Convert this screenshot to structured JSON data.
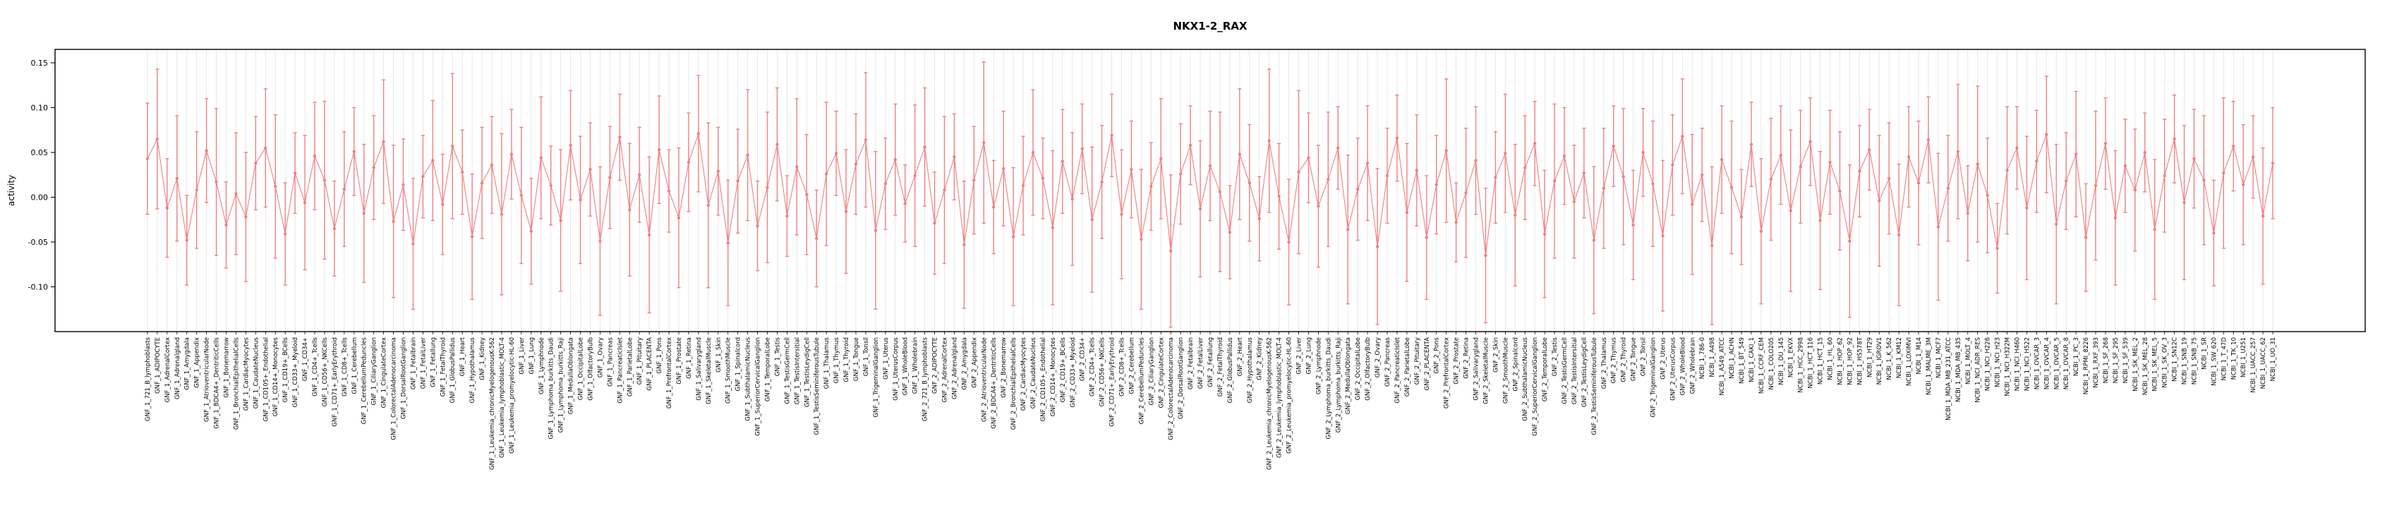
{
  "page": {
    "background": "#ffffff"
  },
  "chart_data": {
    "type": "line",
    "title": "NKX1-2_RAX",
    "xlabel": "",
    "ylabel": "activity",
    "ylim": [
      -0.15,
      0.165
    ],
    "yticks": [
      -0.1,
      -0.05,
      0.0,
      0.05,
      0.1,
      0.15
    ],
    "ytick_labels": [
      "-0.10",
      "-0.05",
      "0.00",
      "0.05",
      "0.10",
      "0.15"
    ],
    "grid": true,
    "legend": "none",
    "error_bars": true,
    "series_color": "#f08080",
    "grid_color": "#e3e3e3",
    "frame_color": "#000000",
    "category_prefix_groups": [
      {
        "prefix": "GNF_1_",
        "set": "gnf_tissues"
      },
      {
        "prefix": "GNF_2_",
        "set": "gnf_tissues"
      },
      {
        "prefix": "NCBI_1_",
        "set": "ncbi_cell_lines"
      }
    ],
    "gnf_tissues": [
      "721_B_lymphoblasts",
      "ADIPOCYTE",
      "AdrenalCortex",
      "Adrenalgland",
      "Amygdala",
      "Appendix",
      "AtrioventricularNode",
      "BDCA4+_DentriticCells",
      "Bonemarrow",
      "BronchialEpithelialCells",
      "CardiacMyocytes",
      "CaudateNucleus",
      "CD105+_Endothelial",
      "CD14+_Monocytes",
      "CD19+_BCells",
      "CD33+_Myeloid",
      "CD34+",
      "CD4+_Tcells",
      "CD56+_NKCells",
      "CD71+_EarlyErythroid",
      "CD8+_Tcells",
      "Cerebellum",
      "CerebellumPeduncles",
      "CiliaryGanglion",
      "CingulateCortex",
      "ColorectalAdenocarcinoma",
      "DorsalRootGanglion",
      "Fetalbrain",
      "FetalLiver",
      "Fetallung",
      "FetalThyroid",
      "GlobusPallidus",
      "Heart",
      "Hypothalamus",
      "Kidney",
      "Leukemia_chronicMyelogenousK-562",
      "Leukemia_lymphoblastic_MOLT-4",
      "Leukemia_promyelocytic-HL-60",
      "Liver",
      "Lung",
      "Lymphnode",
      "Lymphoma_burkitts_Daudi",
      "Lymphoma_burkitts_Raji",
      "MedullaOblongata",
      "OccipitalLobe",
      "OlfactoryBulb",
      "Ovary",
      "Pancreas",
      "PancreaticIslet",
      "ParietalLobe",
      "Pituitary",
      "PLACENTA",
      "Pons",
      "PrefrontalCortex",
      "Prostate",
      "Retina",
      "Salivarygland",
      "SkeletalMuscle",
      "Skin",
      "SmoothMuscle",
      "Spinalcord",
      "SubthalamicNucleus",
      "SuperiorCervicalGanglion",
      "TemporalLobe",
      "Testis",
      "TestisGermCell",
      "TestisIntersitial",
      "TestisLeydigCell",
      "TestisSeminiferousTubule",
      "Thalamus",
      "Thymus",
      "Thyroid",
      "Tongue",
      "Tonsil",
      "TrigeminalGanglion",
      "Uterus",
      "UterusCorpus",
      "WholeBlood",
      "Wholebrain"
    ],
    "ncbi_cell_lines": [
      "786-0",
      "A498",
      "A549_ATCC",
      "ACHN",
      "BT_549",
      "CAKI_1",
      "CCRF_CEM",
      "COLO205",
      "DU_145",
      "EKVX",
      "HCC_2998",
      "HCT_116",
      "HCT_15",
      "HL_60",
      "HOP_62",
      "HOP_92",
      "HS578T",
      "HT29",
      "IGROV1",
      "K_562",
      "KM12",
      "LOXIMVI",
      "M14",
      "MALME_3M",
      "MCF7",
      "MDA_MB_231_ATCC",
      "MDA_MB_435",
      "MOLT_4",
      "NCI_ADR_RES",
      "NCI_H226",
      "NCI_H23",
      "NCI_H322M",
      "NCI_H460",
      "NCI_H522",
      "OVCAR_3",
      "OVCAR_4",
      "OVCAR_5",
      "OVCAR_8",
      "PC_3",
      "RPMI_8226",
      "RXF_393",
      "SF_268",
      "SF_295",
      "SF_539",
      "SK_MEL_2",
      "SK_MEL_28",
      "SK_MEL_5",
      "SK_OV_3",
      "SN12C",
      "SNB_19",
      "SNB_75",
      "SR",
      "SW_620",
      "T_47D",
      "TK_10",
      "U251",
      "UACC_257",
      "UACC_62",
      "UO_31"
    ],
    "values": [
      0.043,
      0.065,
      -0.012,
      0.021,
      -0.048,
      0.008,
      0.052,
      0.017,
      -0.031,
      0.004,
      -0.022,
      0.038,
      0.055,
      0.012,
      -0.041,
      0.027,
      -0.006,
      0.046,
      0.019,
      -0.035,
      0.009,
      0.051,
      -0.018,
      0.033,
      0.062,
      -0.027,
      0.014,
      -0.052,
      0.023,
      0.041,
      -0.008,
      0.057,
      0.028,
      -0.044,
      0.016,
      0.036,
      -0.019,
      0.048,
      0.002,
      -0.038,
      0.044,
      0.013,
      -0.026,
      0.058,
      -0.003,
      0.031,
      -0.049,
      0.022,
      0.067,
      -0.014,
      0.025,
      -0.042,
      0.053,
      0.007,
      -0.023,
      0.039,
      0.071,
      -0.009,
      0.029,
      -0.051,
      0.018,
      0.047,
      -0.032,
      0.011,
      0.059,
      -0.021,
      0.034,
      0.003,
      -0.046,
      0.026,
      0.049,
      -0.016,
      0.037,
      0.064,
      -0.037,
      0.015,
      0.042,
      -0.007,
      0.024,
      0.056,
      -0.029,
      0.008,
      0.045,
      -0.053,
      0.019,
      0.061,
      -0.011,
      0.032,
      -0.044,
      0.013,
      0.05,
      0.021,
      -0.034,
      0.04,
      -0.002,
      0.054,
      -0.025,
      0.017,
      0.069,
      -0.019,
      0.031,
      -0.047,
      0.012,
      0.043,
      -0.06,
      0.026,
      0.058,
      -0.013,
      0.035,
      0.006,
      -0.039,
      0.048,
      0.016,
      -0.024,
      0.063,
      0.001,
      -0.05,
      0.028,
      0.044,
      -0.01,
      0.02,
      0.055,
      -0.036,
      0.009,
      0.038,
      -0.055,
      0.024,
      0.066,
      -0.017,
      0.03,
      -0.045,
      0.014,
      0.052,
      -0.028,
      0.005,
      0.041,
      -0.065,
      0.022,
      0.049,
      -0.02,
      0.033,
      0.06,
      -0.041,
      0.018,
      0.046,
      -0.005,
      0.027,
      -0.048,
      0.01,
      0.057,
      0.023,
      -0.031,
      0.05,
      0.015,
      -0.043,
      0.036,
      0.068,
      -0.008,
      0.025,
      -0.054,
      0.042,
      0.011,
      -0.022,
      0.059,
      -0.038,
      0.02,
      0.047,
      -0.015,
      0.034,
      0.062,
      -0.026,
      0.039,
      0.007,
      -0.049,
      0.029,
      0.053,
      -0.004,
      0.021,
      -0.042,
      0.045,
      0.016,
      0.064,
      -0.033,
      0.01,
      0.051,
      -0.018,
      0.037,
      0.002,
      -0.057,
      0.03,
      0.055,
      -0.012,
      0.04,
      0.07,
      -0.03,
      0.018,
      0.048,
      -0.045,
      0.013,
      0.06,
      -0.023,
      0.035,
      0.008,
      0.05,
      -0.036,
      0.024,
      0.065,
      -0.006,
      0.043,
      0.019,
      -0.04,
      0.027,
      0.057,
      0.014,
      0.045,
      -0.021,
      0.038
    ],
    "ci_halfwidth": [
      0.062,
      0.078,
      0.055,
      0.07,
      0.05,
      0.065,
      0.058,
      0.082,
      0.048,
      0.068,
      0.072,
      0.052,
      0.066,
      0.08,
      0.057,
      0.045,
      0.075,
      0.06,
      0.088,
      0.053,
      0.064,
      0.049,
      0.077,
      0.058,
      0.069,
      0.085,
      0.051,
      0.073,
      0.046,
      0.067,
      0.056,
      0.081,
      0.047,
      0.07,
      0.062,
      0.054,
      0.09,
      0.05,
      0.076,
      0.059,
      0.068,
      0.044,
      0.079,
      0.061,
      0.071,
      0.052,
      0.083,
      0.057,
      0.048,
      0.074,
      0.053,
      0.087,
      0.06,
      0.046,
      0.078,
      0.055,
      0.065,
      0.092,
      0.049,
      0.07,
      0.058,
      0.073,
      0.05,
      0.084,
      0.063,
      0.045,
      0.076,
      0.067,
      0.054,
      0.08,
      0.047,
      0.069,
      0.056,
      0.075,
      0.088,
      0.051,
      0.062,
      0.043,
      0.079,
      0.066,
      0.057,
      0.082,
      0.048,
      0.071,
      0.06,
      0.09,
      0.052,
      0.064,
      0.077,
      0.055,
      0.07,
      0.045,
      0.086,
      0.058,
      0.074,
      0.05,
      0.081,
      0.063,
      0.046,
      0.072,
      0.054,
      0.078,
      0.049,
      0.067,
      0.085,
      0.056,
      0.044,
      0.076,
      0.061,
      0.089,
      0.052,
      0.073,
      0.065,
      0.047,
      0.08,
      0.059,
      0.07,
      0.091,
      0.05,
      0.068,
      0.075,
      0.046,
      0.083,
      0.057,
      0.064,
      0.087,
      0.053,
      0.048,
      0.077,
      0.062,
      0.069,
      0.055,
      0.08,
      0.044,
      0.072,
      0.06,
      0.075,
      0.051,
      0.066,
      0.079,
      0.058,
      0.047,
      0.071,
      0.086,
      0.054,
      0.063,
      0.05,
      0.082,
      0.067,
      0.045,
      0.076,
      0.061,
      0.049,
      0.07,
      0.084,
      0.056,
      0.064,
      0.078,
      0.052,
      0.088,
      0.06,
      0.074,
      0.053,
      0.047,
      0.081,
      0.068,
      0.055,
      0.09,
      0.063,
      0.049,
      0.077,
      0.058,
      0.066,
      0.085,
      0.051,
      0.045,
      0.073,
      0.062,
      0.079,
      0.056,
      0.069,
      0.048,
      0.082,
      0.059,
      0.075,
      0.053,
      0.087,
      0.064,
      0.05,
      0.071,
      0.046,
      0.08,
      0.057,
      0.065,
      0.089,
      0.054,
      0.07,
      0.06,
      0.083,
      0.051,
      0.075,
      0.052,
      0.068,
      0.044,
      0.078,
      0.063,
      0.049,
      0.086,
      0.055,
      0.072,
      0.059,
      0.084,
      0.05,
      0.067,
      0.046,
      0.076,
      0.062
    ]
  }
}
